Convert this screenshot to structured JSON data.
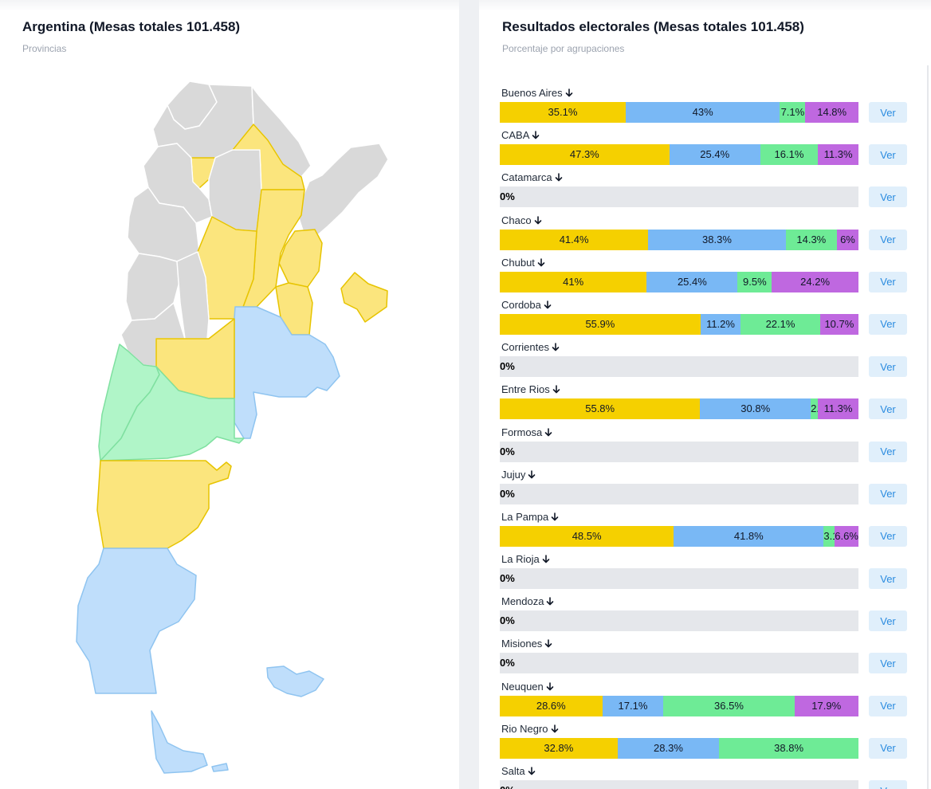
{
  "map_panel": {
    "title": "Argentina (Mesas totales 101.458)",
    "subtitle": "Provincias"
  },
  "results_panel": {
    "title": "Resultados electorales (Mesas totales 101.458)",
    "subtitle": "Porcentaje por agrupaciones",
    "button_label": "Ver",
    "empty_label": "0%"
  },
  "colors": {
    "party_1": "#f5d000",
    "party_2": "#79b8f5",
    "party_3": "#6eeb96",
    "party_4": "#bf68e0",
    "empty_bar": "#e5e7eb",
    "button_bg": "#e0effb",
    "button_text": "#2b8ce0",
    "map_grey": "#d9d9d9",
    "map_yellow": "#fbe57d",
    "map_blue": "#bfdefb",
    "map_green": "#b0f5c8"
  },
  "chart_data": {
    "type": "bar",
    "orientation": "horizontal-stacked-100",
    "categories": [
      "Buenos Aires",
      "CABA",
      "Catamarca",
      "Chaco",
      "Chubut",
      "Cordoba",
      "Corrientes",
      "Entre Rios",
      "Formosa",
      "Jujuy",
      "La Pampa",
      "La Rioja",
      "Mendoza",
      "Misiones",
      "Neuquen",
      "Rio Negro",
      "Salta"
    ],
    "series": [
      {
        "color": "#f5d000",
        "values": [
          35.1,
          47.3,
          0,
          41.4,
          41,
          55.9,
          0,
          55.8,
          0,
          0,
          48.5,
          0,
          0,
          0,
          28.6,
          32.8,
          0
        ]
      },
      {
        "color": "#79b8f5",
        "values": [
          43,
          25.4,
          0,
          38.3,
          25.4,
          11.2,
          0,
          30.8,
          0,
          0,
          41.8,
          0,
          0,
          0,
          17.1,
          28.3,
          0
        ]
      },
      {
        "color": "#6eeb96",
        "values": [
          7.1,
          16.1,
          0,
          14.3,
          9.5,
          22.1,
          0,
          2,
          0,
          0,
          3.1,
          0,
          0,
          0,
          36.5,
          38.8,
          0
        ]
      },
      {
        "color": "#bf68e0",
        "values": [
          14.8,
          11.3,
          0,
          6,
          24.2,
          10.7,
          0,
          11.3,
          0,
          0,
          6.6,
          0,
          0,
          0,
          17.9,
          0,
          0
        ]
      }
    ],
    "segment_labels": [
      [
        "35.1%",
        "43%",
        "7.1%",
        "14.8%"
      ],
      [
        "47.3%",
        "25.4%",
        "16.1%",
        "11.3%"
      ],
      [],
      [
        "41.4%",
        "38.3%",
        "14.3%",
        "6%"
      ],
      [
        "41%",
        "25.4%",
        "9.5%",
        "24.2%"
      ],
      [
        "55.9%",
        "11.2%",
        "22.1%",
        "10.7%"
      ],
      [],
      [
        "55.8%",
        "30.8%",
        "2.",
        "11.3%"
      ],
      [],
      [],
      [
        "48.5%",
        "41.8%",
        "3.1",
        "6.6%"
      ],
      [],
      [],
      [],
      [
        "28.6%",
        "17.1%",
        "36.5%",
        "17.9%"
      ],
      [
        "32.8%",
        "28.3%",
        "38.8%"
      ],
      []
    ]
  }
}
